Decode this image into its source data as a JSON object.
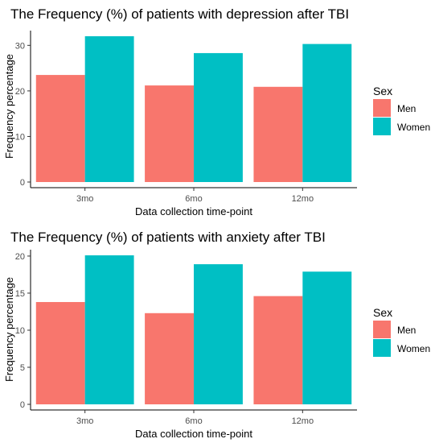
{
  "chart_data": [
    {
      "type": "bar",
      "title": "The Frequency (%) of patients with depression after TBI",
      "xlabel": "Data collection time-point",
      "ylabel": "Frequency percentage",
      "categories": [
        "3mo",
        "6mo",
        "12mo"
      ],
      "ylim": [
        0,
        32
      ],
      "yticks": [
        0,
        10,
        20,
        30
      ],
      "grid": false,
      "legend": {
        "title": "Sex",
        "position": "right"
      },
      "series": [
        {
          "name": "Men",
          "color": "#F8766D",
          "values": [
            23.5,
            21.2,
            20.9
          ]
        },
        {
          "name": "Women",
          "color": "#00BFC4",
          "values": [
            32.0,
            28.3,
            30.3
          ]
        }
      ]
    },
    {
      "type": "bar",
      "title": "The Frequency (%) of patients with anxiety after TBI",
      "xlabel": "Data collection time-point",
      "ylabel": "Frequency percentage",
      "categories": [
        "3mo",
        "6mo",
        "12mo"
      ],
      "ylim": [
        0,
        20.1
      ],
      "yticks": [
        0,
        5,
        10,
        15,
        20
      ],
      "grid": false,
      "legend": {
        "title": "Sex",
        "position": "right"
      },
      "series": [
        {
          "name": "Men",
          "color": "#F8766D",
          "values": [
            13.8,
            12.3,
            14.6
          ]
        },
        {
          "name": "Women",
          "color": "#00BFC4",
          "values": [
            20.1,
            18.9,
            17.9
          ]
        }
      ]
    }
  ]
}
